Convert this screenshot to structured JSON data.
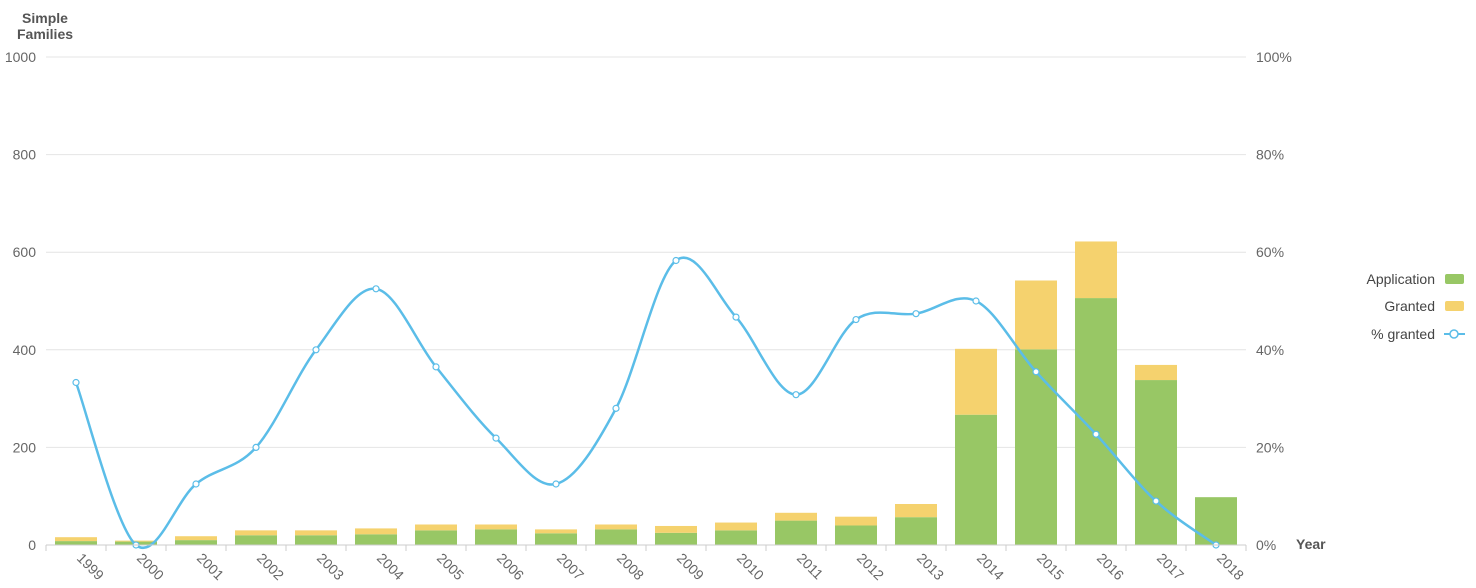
{
  "chart_data": {
    "type": "bar",
    "stacked": true,
    "y_axis_title_line1": "Simple",
    "y_axis_title_line2": "Families",
    "x_axis_title": "Year",
    "categories": [
      "1999",
      "2000",
      "2001",
      "2002",
      "2003",
      "2004",
      "2005",
      "2006",
      "2007",
      "2008",
      "2009",
      "2010",
      "2011",
      "2012",
      "2013",
      "2014",
      "2015",
      "2016",
      "2017",
      "2018"
    ],
    "series": [
      {
        "name": "Application",
        "type": "bar",
        "color": "#98c765",
        "values": [
          8,
          7,
          10,
          20,
          20,
          22,
          30,
          32,
          24,
          32,
          25,
          30,
          50,
          40,
          57,
          267,
          401,
          506,
          338,
          98
        ]
      },
      {
        "name": "Granted",
        "type": "bar",
        "color": "#f5d26e",
        "values": [
          8,
          2,
          8,
          10,
          10,
          12,
          12,
          10,
          8,
          10,
          14,
          16,
          16,
          18,
          27,
          135,
          141,
          116,
          31,
          0
        ]
      },
      {
        "name": "% granted",
        "type": "line",
        "axis": "right",
        "color": "#5bbde8",
        "values": [
          33.3,
          0,
          12.5,
          20,
          40,
          52.5,
          36.5,
          21.9,
          12.5,
          28,
          58.3,
          46.7,
          30.8,
          46.2,
          47.4,
          50,
          35.5,
          22.7,
          9,
          0
        ]
      }
    ],
    "left_axis": {
      "min": 0,
      "max": 1000,
      "ticks": [
        "0",
        "200",
        "400",
        "600",
        "800",
        "1000"
      ]
    },
    "right_axis": {
      "min": 0,
      "max": 100,
      "ticks": [
        "0%",
        "20%",
        "40%",
        "60%",
        "80%",
        "100%"
      ]
    },
    "grid": true,
    "legend_position": "right"
  }
}
